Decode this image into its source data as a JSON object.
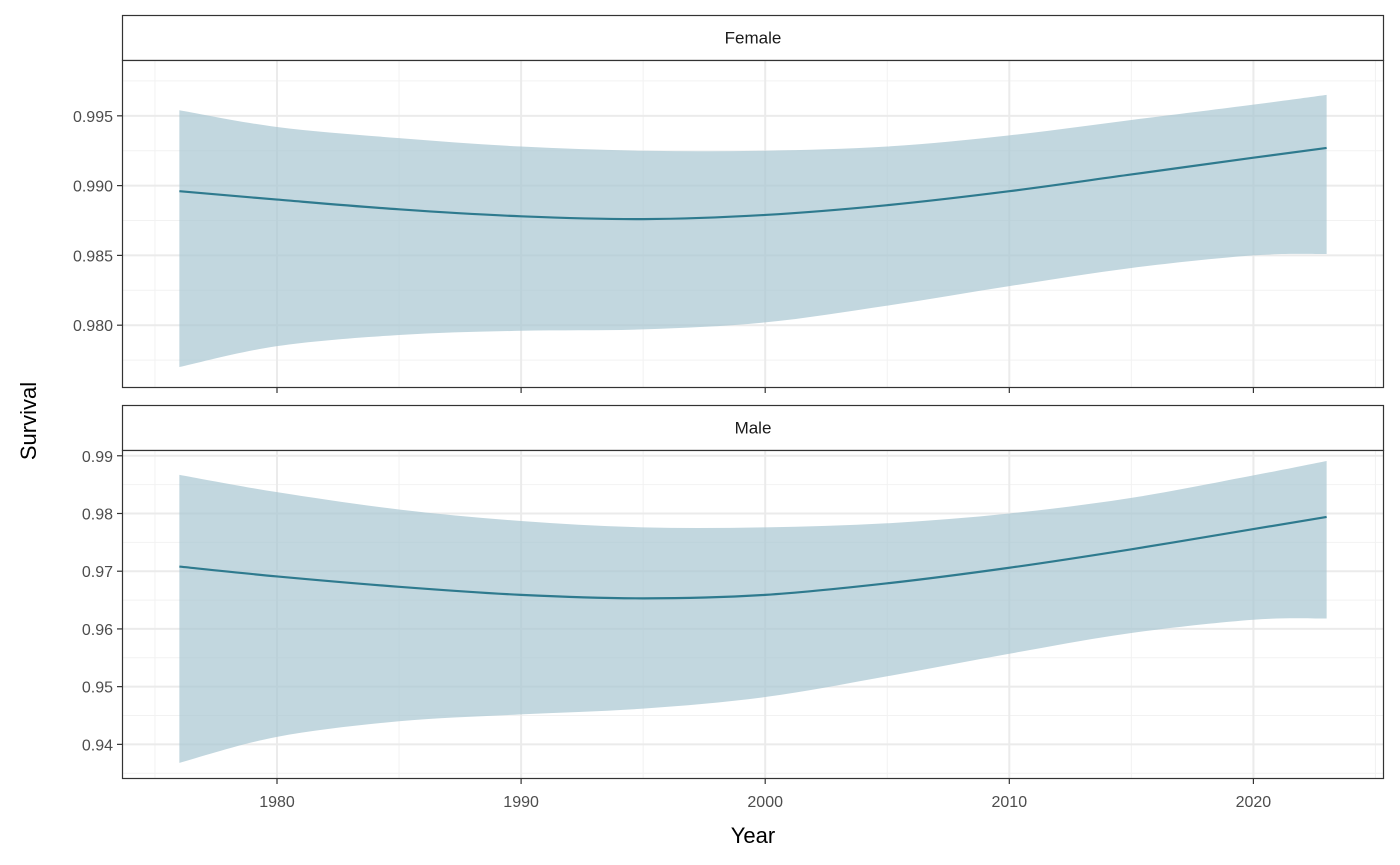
{
  "chart_data": {
    "type": "line",
    "xlabel": "Year",
    "ylabel": "Survival",
    "xlim": [
      1973.65,
      2025.35
    ],
    "x_ticks": [
      1980,
      1990,
      2000,
      2010,
      2020
    ],
    "x_tick_labels": [
      "1980",
      "1990",
      "2000",
      "2010",
      "2020"
    ],
    "grid": true,
    "line_color": "#2e7a8e",
    "ribbon_color": "#a8c6d1",
    "panels": [
      {
        "strip": "Female",
        "ylim": [
          0.9755,
          0.999
        ],
        "y_ticks": [
          0.98,
          0.985,
          0.99,
          0.995
        ],
        "y_tick_labels": [
          "0.980",
          "0.985",
          "0.990",
          "0.995"
        ],
        "x": [
          1976,
          1980,
          1985,
          1990,
          1995,
          2000,
          2005,
          2010,
          2015,
          2020,
          2023
        ],
        "fit": [
          0.9896,
          0.989,
          0.9883,
          0.9878,
          0.9876,
          0.9879,
          0.9886,
          0.9896,
          0.9908,
          0.992,
          0.9927
        ],
        "lower": [
          0.977,
          0.9785,
          0.9793,
          0.9796,
          0.9797,
          0.9802,
          0.9814,
          0.9828,
          0.9841,
          0.985,
          0.9851
        ],
        "upper": [
          0.9954,
          0.9942,
          0.9934,
          0.9928,
          0.9925,
          0.9925,
          0.9928,
          0.9936,
          0.9947,
          0.9958,
          0.9965
        ]
      },
      {
        "strip": "Male",
        "ylim": [
          0.934,
          0.991
        ],
        "y_ticks": [
          0.94,
          0.95,
          0.96,
          0.97,
          0.98,
          0.99
        ],
        "y_tick_labels": [
          "0.94",
          "0.95",
          "0.96",
          "0.97",
          "0.98",
          "0.99"
        ],
        "x": [
          1976,
          1980,
          1985,
          1990,
          1995,
          2000,
          2005,
          2010,
          2015,
          2020,
          2023
        ],
        "fit": [
          0.9708,
          0.9691,
          0.9673,
          0.9659,
          0.9653,
          0.9659,
          0.9679,
          0.9706,
          0.9738,
          0.9773,
          0.9794
        ],
        "lower": [
          0.9368,
          0.9413,
          0.944,
          0.9452,
          0.9462,
          0.9482,
          0.9518,
          0.9557,
          0.9593,
          0.9616,
          0.9618
        ],
        "upper": [
          0.9867,
          0.9837,
          0.9807,
          0.9787,
          0.9776,
          0.9776,
          0.9783,
          0.98,
          0.9827,
          0.9866,
          0.9891
        ]
      }
    ]
  }
}
